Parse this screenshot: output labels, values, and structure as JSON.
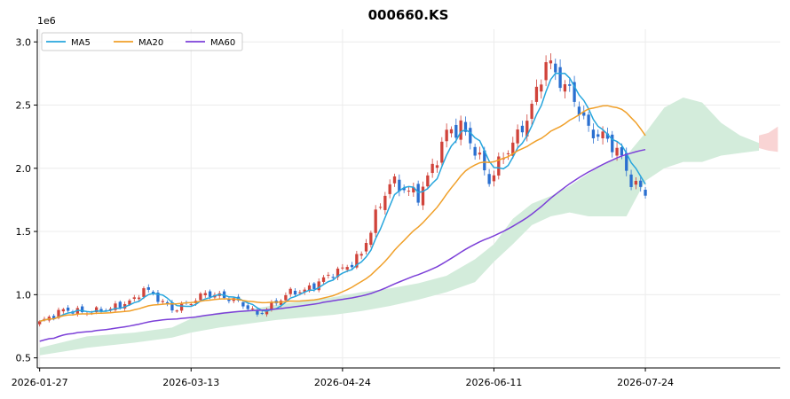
{
  "chart_data": {
    "type": "candlestick",
    "title": "000660.KS",
    "y_multiplier_label": "1e6",
    "x_tick_labels": [
      {
        "index": 0,
        "label": "2026-01-27"
      },
      {
        "index": 32,
        "label": "2026-03-13"
      },
      {
        "index": 64,
        "label": "2026-04-24"
      },
      {
        "index": 96,
        "label": "2026-06-11"
      },
      {
        "index": 128,
        "label": "2026-07-24"
      }
    ],
    "y_ticks": [
      {
        "value": 0.5,
        "label": "0.5"
      },
      {
        "value": 1.0,
        "label": "1.0"
      },
      {
        "value": 1.5,
        "label": "1.5"
      },
      {
        "value": 2.0,
        "label": "2.0"
      },
      {
        "value": 2.5,
        "label": "2.5"
      },
      {
        "value": 3.0,
        "label": "3.0"
      }
    ],
    "x_range": [
      -0.5,
      156.5
    ],
    "y_range": [
      0.42,
      3.1
    ],
    "grid": true,
    "legend": {
      "position": "top-left",
      "entries": [
        "MA5",
        "MA20",
        "MA60"
      ]
    },
    "colors": {
      "up": "#d0433a",
      "down": "#2a6fd0",
      "ma5": "#27a6dd",
      "ma20": "#f0a02a",
      "ma60": "#7c40d8",
      "cloud_bull": "#d3ecdb",
      "cloud_bear": "#f9d4d4"
    },
    "close_anchors": [
      [
        0,
        0.78
      ],
      [
        5,
        0.88
      ],
      [
        10,
        0.86
      ],
      [
        15,
        0.89
      ],
      [
        20,
        0.96
      ],
      [
        22,
        1.05
      ],
      [
        25,
        0.97
      ],
      [
        28,
        0.88
      ],
      [
        32,
        0.94
      ],
      [
        35,
        1.01
      ],
      [
        38,
        0.99
      ],
      [
        41,
        0.96
      ],
      [
        44,
        0.9
      ],
      [
        46,
        0.84
      ],
      [
        50,
        0.94
      ],
      [
        53,
        1.02
      ],
      [
        56,
        1.03
      ],
      [
        59,
        1.1
      ],
      [
        62,
        1.17
      ],
      [
        65,
        1.22
      ],
      [
        68,
        1.32
      ],
      [
        71,
        1.62
      ],
      [
        74,
        1.89
      ],
      [
        77,
        1.84
      ],
      [
        80,
        1.78
      ],
      [
        83,
        2.0
      ],
      [
        86,
        2.28
      ],
      [
        89,
        2.33
      ],
      [
        92,
        2.15
      ],
      [
        95,
        1.9
      ],
      [
        98,
        2.1
      ],
      [
        101,
        2.25
      ],
      [
        104,
        2.48
      ],
      [
        107,
        2.85
      ],
      [
        110,
        2.7
      ],
      [
        113,
        2.55
      ],
      [
        116,
        2.3
      ],
      [
        119,
        2.25
      ],
      [
        122,
        2.15
      ],
      [
        125,
        1.9
      ],
      [
        128,
        1.8
      ]
    ],
    "cloud_segments": [
      {
        "x": [
          0,
          10,
          20,
          28,
          32,
          38,
          44,
          50,
          56,
          62,
          68,
          74,
          80,
          86,
          92,
          96,
          100,
          104,
          108,
          112,
          116,
          120,
          124,
          128,
          132,
          136,
          140,
          144,
          148,
          152
        ],
        "upper": [
          0.58,
          0.67,
          0.7,
          0.74,
          0.81,
          0.86,
          0.88,
          0.92,
          0.95,
          0.98,
          1.02,
          1.05,
          1.09,
          1.15,
          1.28,
          1.4,
          1.6,
          1.72,
          1.78,
          1.86,
          1.96,
          2.05,
          2.1,
          2.28,
          2.48,
          2.56,
          2.52,
          2.36,
          2.26,
          2.2
        ],
        "lower": [
          0.52,
          0.58,
          0.62,
          0.66,
          0.7,
          0.74,
          0.77,
          0.8,
          0.82,
          0.84,
          0.87,
          0.91,
          0.96,
          1.02,
          1.1,
          1.26,
          1.4,
          1.55,
          1.62,
          1.65,
          1.62,
          1.62,
          1.62,
          1.9,
          2.0,
          2.05,
          2.05,
          2.1,
          2.12,
          2.14
        ]
      },
      {
        "x": [
          152,
          154,
          156
        ],
        "upper": [
          2.26,
          2.28,
          2.33
        ],
        "lower": [
          2.16,
          2.14,
          2.13
        ],
        "type": "bear"
      }
    ]
  }
}
